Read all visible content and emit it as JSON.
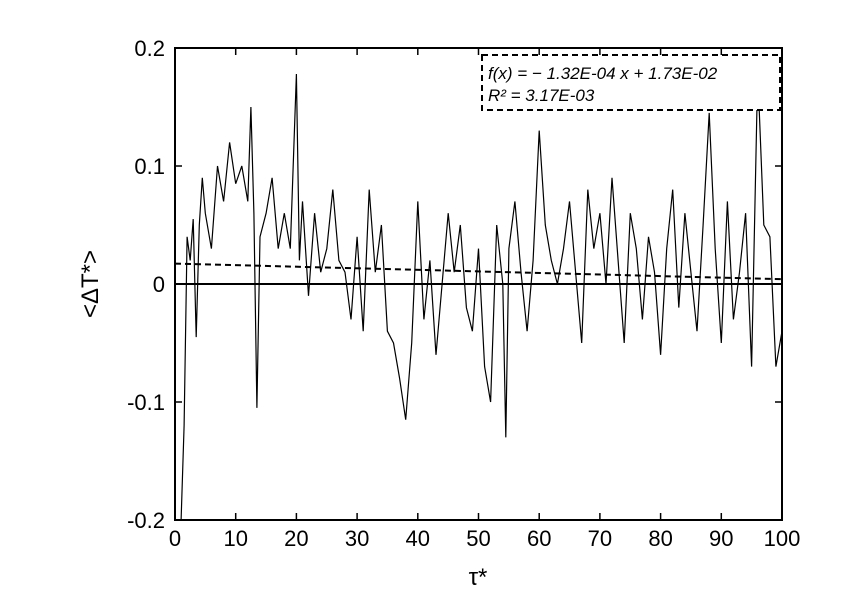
{
  "chart_data": {
    "type": "line",
    "title": "",
    "xlabel": "τ*",
    "ylabel": "<ΔT*>",
    "xlim": [
      0,
      100
    ],
    "ylim": [
      -0.2,
      0.2
    ],
    "x_ticks": [
      0,
      10,
      20,
      30,
      40,
      50,
      60,
      70,
      80,
      90,
      100
    ],
    "y_ticks": [
      -0.2,
      -0.1,
      0,
      0.1,
      0.2
    ],
    "x_tick_labels": [
      "0",
      "10",
      "20",
      "30",
      "40",
      "50",
      "60",
      "70",
      "80",
      "90",
      "100"
    ],
    "y_tick_labels": [
      "-0.2",
      "-0.1",
      "0",
      "0.1",
      "0.2"
    ],
    "grid": false,
    "legend": null,
    "annotation": {
      "line1": "f(x) = − 1.32E-04 x + 1.73E-02",
      "line2": "R² = 3.17E-03",
      "placement": "top-right"
    },
    "series": [
      {
        "style": "solid",
        "color": "#000000",
        "x": [
          0,
          1,
          1.5,
          2,
          2.5,
          3,
          3.5,
          4,
          4.5,
          5,
          6,
          7,
          8,
          9,
          10,
          11,
          12,
          12.5,
          13,
          13.5,
          14,
          15,
          16,
          17,
          18,
          19,
          20,
          20.5,
          21,
          22,
          23,
          24,
          25,
          26,
          27,
          28,
          29,
          30,
          31,
          32,
          33,
          34,
          35,
          36,
          37,
          38,
          39,
          40,
          41,
          42,
          43,
          44,
          45,
          46,
          47,
          48,
          49,
          50,
          51,
          52,
          53,
          54,
          54.5,
          55,
          56,
          57,
          58,
          59,
          60,
          61,
          62,
          63,
          64,
          65,
          66,
          67,
          68,
          69,
          70,
          71,
          72,
          73,
          74,
          75,
          76,
          77,
          78,
          79,
          80,
          81,
          82,
          83,
          84,
          85,
          86,
          87,
          88,
          89,
          90,
          91,
          92,
          93,
          94,
          95,
          96,
          97,
          98,
          99,
          100
        ],
        "y": [
          -0.2,
          -0.2,
          -0.12,
          0.04,
          0.02,
          0.055,
          -0.045,
          0.05,
          0.09,
          0.06,
          0.03,
          0.1,
          0.07,
          0.12,
          0.085,
          0.1,
          0.07,
          0.15,
          0.06,
          -0.105,
          0.04,
          0.06,
          0.09,
          0.03,
          0.06,
          0.03,
          0.178,
          0.02,
          0.07,
          -0.01,
          0.06,
          0.01,
          0.03,
          0.08,
          0.02,
          0.01,
          -0.03,
          0.04,
          -0.04,
          0.08,
          0.01,
          0.05,
          -0.04,
          -0.05,
          -0.08,
          -0.115,
          -0.05,
          0.07,
          -0.03,
          0.02,
          -0.06,
          0.0,
          0.06,
          0.01,
          0.05,
          -0.02,
          -0.04,
          0.03,
          -0.07,
          -0.1,
          0.05,
          0.0,
          -0.13,
          0.03,
          0.07,
          0.01,
          -0.04,
          0.02,
          0.13,
          0.05,
          0.02,
          0.0,
          0.03,
          0.07,
          0.01,
          -0.05,
          0.08,
          0.03,
          0.06,
          0.0,
          0.09,
          0.02,
          -0.05,
          0.06,
          0.03,
          -0.03,
          0.04,
          0.01,
          -0.06,
          0.03,
          0.08,
          -0.02,
          0.06,
          0.01,
          -0.04,
          0.05,
          0.145,
          0.03,
          -0.05,
          0.07,
          -0.03,
          0.01,
          0.06,
          -0.07,
          0.18,
          0.05,
          0.04,
          -0.07,
          -0.04
        ]
      },
      {
        "style": "dashed",
        "color": "#000000",
        "x": [
          0,
          100
        ],
        "y": [
          0.0173,
          0.0041
        ]
      },
      {
        "style": "solid",
        "color": "#000000",
        "x": [
          0,
          100
        ],
        "y": [
          0,
          0
        ]
      }
    ]
  }
}
